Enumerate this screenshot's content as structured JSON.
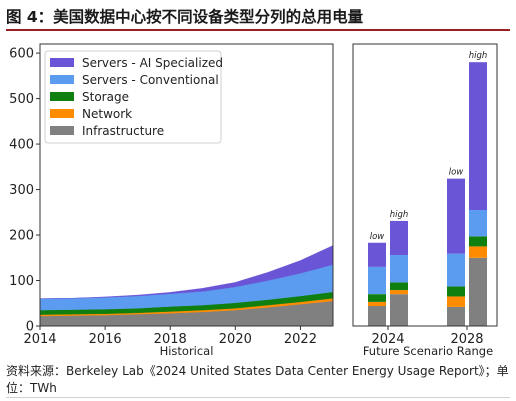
{
  "title": "图 4：美国数据中心按不同设备类型分列的总用电量",
  "source": "资料来源：Berkeley Lab《2024 United States Data Center Energy Usage Report》；单位：TWh",
  "chart_data": [
    {
      "type": "area",
      "xlabel": "Historical",
      "ylabel": "",
      "xlim": [
        2014,
        2023
      ],
      "ylim": [
        0,
        620
      ],
      "x_ticks": [
        "2014",
        "2016",
        "2018",
        "2020",
        "2022"
      ],
      "y_ticks": [
        "0",
        "100",
        "200",
        "300",
        "400",
        "500",
        "600"
      ],
      "grid": false,
      "legend_position": "top-left",
      "x": [
        2014,
        2015,
        2016,
        2017,
        2018,
        2019,
        2020,
        2021,
        2022,
        2023
      ],
      "series": [
        {
          "name": "Infrastructure",
          "color": "#808080",
          "values": [
            22,
            23,
            24,
            26,
            28,
            31,
            35,
            41,
            48,
            55
          ]
        },
        {
          "name": "Network",
          "color": "#ff8c00",
          "values": [
            3,
            3,
            3,
            3,
            4,
            4,
            4,
            5,
            5,
            6
          ]
        },
        {
          "name": "Storage",
          "color": "#0f7f0f",
          "values": [
            10,
            10,
            10,
            10,
            11,
            11,
            12,
            12,
            13,
            14
          ]
        },
        {
          "name": "Servers - Conventional",
          "color": "#5b9cf0",
          "values": [
            25,
            25,
            26,
            27,
            28,
            30,
            35,
            42,
            50,
            60
          ]
        },
        {
          "name": "Servers - AI Specialized",
          "color": "#6a55d6",
          "values": [
            0,
            0,
            1,
            2,
            3,
            7,
            10,
            18,
            28,
            42
          ]
        }
      ]
    },
    {
      "type": "bar",
      "stacked": true,
      "xlabel": "Future Scenario Range",
      "ylim": [
        0,
        620
      ],
      "x_ticks": [
        "2024",
        "2028"
      ],
      "grid": false,
      "bars": [
        {
          "group": "2024",
          "label": "low",
          "values": {
            "Infrastructure": 44,
            "Network": 9,
            "Storage": 17,
            "Servers - Conventional": 60,
            "Servers - AI Specialized": 53
          }
        },
        {
          "group": "2024",
          "label": "high",
          "values": {
            "Infrastructure": 70,
            "Network": 9,
            "Storage": 17,
            "Servers - Conventional": 60,
            "Servers - AI Specialized": 75
          }
        },
        {
          "group": "2028",
          "label": "low",
          "values": {
            "Infrastructure": 42,
            "Network": 23,
            "Storage": 22,
            "Servers - Conventional": 72,
            "Servers - AI Specialized": 165
          }
        },
        {
          "group": "2028",
          "label": "high",
          "values": {
            "Infrastructure": 150,
            "Network": 25,
            "Storage": 22,
            "Servers - Conventional": 58,
            "Servers - AI Specialized": 325
          }
        }
      ]
    }
  ]
}
